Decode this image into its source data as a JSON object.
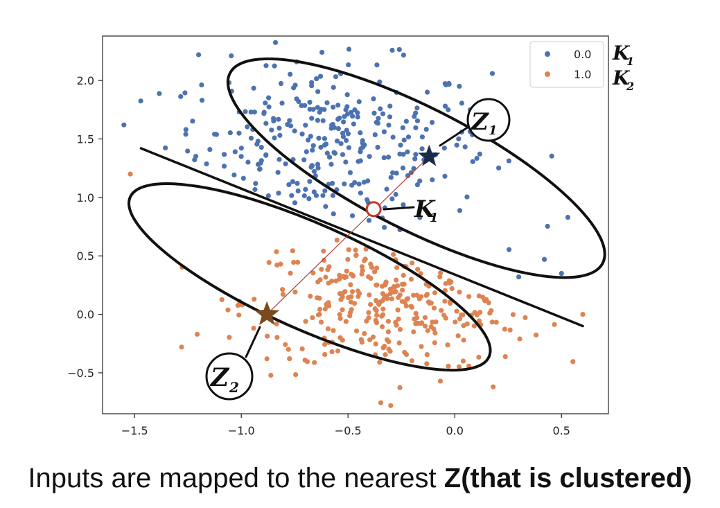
{
  "chart_data": {
    "type": "scatter",
    "xlim": [
      -1.65,
      0.72
    ],
    "ylim": [
      -0.85,
      2.38
    ],
    "xticks": [
      -1.5,
      -1.0,
      -0.5,
      0.0,
      0.5
    ],
    "xtick_labels": [
      "−1.5",
      "−1.0",
      "−0.5",
      "0.0",
      "0.5"
    ],
    "yticks": [
      -0.5,
      0.0,
      0.5,
      1.0,
      1.5,
      2.0
    ],
    "ytick_labels": [
      "−0.5",
      "0.0",
      "0.5",
      "1.0",
      "1.5",
      "2.0"
    ],
    "grid": false,
    "legend_position": "top-right",
    "series": [
      {
        "name": "0.0",
        "color": "#4c72b0",
        "cluster": {
          "cx": -0.6,
          "cy": 1.45,
          "sx": 0.38,
          "sy": 0.35,
          "n": 300
        },
        "extreme_points": [
          [
            -1.55,
            1.62
          ],
          [
            -1.2,
            2.22
          ],
          [
            0.53,
            0.83
          ],
          [
            0.42,
            0.47
          ],
          [
            0.3,
            0.32
          ],
          [
            0.5,
            0.35
          ]
        ]
      },
      {
        "name": "1.0",
        "color": "#dd8452",
        "cluster": {
          "cx": -0.28,
          "cy": 0.1,
          "sx": 0.35,
          "sy": 0.3,
          "n": 300
        },
        "extreme_points": [
          [
            -1.52,
            1.2
          ],
          [
            -1.28,
            -0.28
          ],
          [
            0.6,
            0.0
          ],
          [
            -0.88,
            -0.38
          ],
          [
            0.18,
            -0.62
          ],
          [
            -0.3,
            -0.78
          ]
        ]
      }
    ],
    "annotations": {
      "z1": {
        "label": "Z",
        "sub": "1",
        "x": -0.12,
        "y": 1.35,
        "color": "#1a2b4a"
      },
      "z2": {
        "label": "Z",
        "sub": "2",
        "x": -0.88,
        "y": 0.0,
        "color": "#7a4a1e"
      },
      "k1_point": {
        "label": "K",
        "sub": "1",
        "x": -0.38,
        "y": 0.9,
        "color": "#c0392b"
      },
      "legend_notes": [
        {
          "label": "K",
          "sub": "1"
        },
        {
          "label": "K",
          "sub": "2"
        }
      ],
      "connector": {
        "color": "#b03a2e"
      },
      "boundary": [
        [
          -1.47,
          1.42
        ],
        [
          0.6,
          -0.1
        ]
      ],
      "ellipse_upper": {
        "cx": -0.18,
        "cy": 1.25,
        "rx": 0.98,
        "ry": 0.52,
        "angle_deg": 27
      },
      "ellipse_lower": {
        "cx": -0.68,
        "cy": 0.32,
        "rx": 0.92,
        "ry": 0.45,
        "angle_deg": 24
      }
    }
  },
  "caption": {
    "plain": "Inputs are mapped to the nearest ",
    "bold": "Z(that is clustered)"
  }
}
